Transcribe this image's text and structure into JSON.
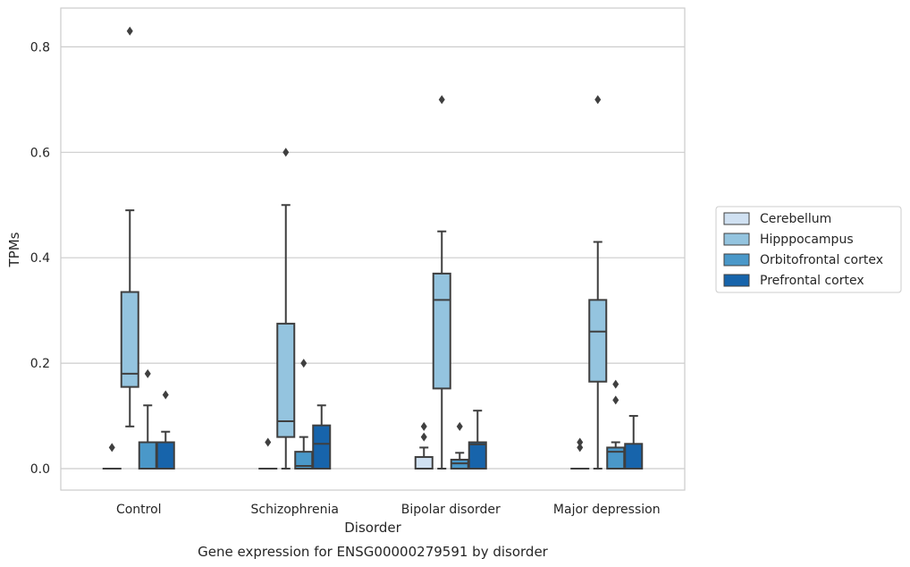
{
  "chart_data": {
    "type": "box",
    "caption": "Gene expression for ENSG00000279591 by disorder",
    "xlabel": "Disorder",
    "ylabel": "TPMs",
    "ylim": [
      -0.04,
      0.875
    ],
    "yticks": [
      "0.0",
      "0.2",
      "0.4",
      "0.6",
      "0.8"
    ],
    "ytick_values": [
      0.0,
      0.2,
      0.4,
      0.6,
      0.8
    ],
    "grid": true,
    "legend_position": "right",
    "categories": [
      "Control",
      "Schizophrenia",
      "Bipolar disorder",
      "Major depression"
    ],
    "series": [
      {
        "name": "Cerebellum",
        "color": "#d0e1f2",
        "boxes": [
          {
            "q1": 0.0,
            "median": 0.0,
            "q3": 0.0,
            "whisker_low": 0.0,
            "whisker_high": 0.0,
            "outliers": [
              0.04
            ]
          },
          {
            "q1": 0.0,
            "median": 0.0,
            "q3": 0.0,
            "whisker_low": 0.0,
            "whisker_high": 0.0,
            "outliers": [
              0.05
            ]
          },
          {
            "q1": 0.0,
            "median": 0.0,
            "q3": 0.022,
            "whisker_low": 0.0,
            "whisker_high": 0.04,
            "outliers": [
              0.06,
              0.08
            ]
          },
          {
            "q1": 0.0,
            "median": 0.0,
            "q3": 0.0,
            "whisker_low": 0.0,
            "whisker_high": 0.0,
            "outliers": [
              0.04,
              0.05
            ]
          }
        ]
      },
      {
        "name": "Hipppocampus",
        "color": "#94c4df",
        "boxes": [
          {
            "q1": 0.155,
            "median": 0.18,
            "q3": 0.335,
            "whisker_low": 0.08,
            "whisker_high": 0.49,
            "outliers": [
              0.83
            ]
          },
          {
            "q1": 0.06,
            "median": 0.09,
            "q3": 0.275,
            "whisker_low": 0.0,
            "whisker_high": 0.5,
            "outliers": [
              0.6
            ]
          },
          {
            "q1": 0.152,
            "median": 0.32,
            "q3": 0.37,
            "whisker_low": 0.0,
            "whisker_high": 0.45,
            "outliers": [
              0.7
            ]
          },
          {
            "q1": 0.165,
            "median": 0.26,
            "q3": 0.32,
            "whisker_low": 0.0,
            "whisker_high": 0.43,
            "outliers": [
              0.7
            ]
          }
        ]
      },
      {
        "name": "Orbitofrontal cortex",
        "color": "#4a98c9",
        "boxes": [
          {
            "q1": 0.0,
            "median": 0.0,
            "q3": 0.05,
            "whisker_low": 0.0,
            "whisker_high": 0.12,
            "outliers": [
              0.18
            ]
          },
          {
            "q1": 0.0,
            "median": 0.005,
            "q3": 0.032,
            "whisker_low": 0.0,
            "whisker_high": 0.06,
            "outliers": [
              0.2
            ]
          },
          {
            "q1": 0.0,
            "median": 0.01,
            "q3": 0.017,
            "whisker_low": 0.0,
            "whisker_high": 0.03,
            "outliers": [
              0.08
            ]
          },
          {
            "q1": 0.0,
            "median": 0.032,
            "q3": 0.04,
            "whisker_low": 0.0,
            "whisker_high": 0.05,
            "outliers": [
              0.13,
              0.16
            ]
          }
        ]
      },
      {
        "name": "Prefrontal cortex",
        "color": "#1764ab",
        "boxes": [
          {
            "q1": 0.0,
            "median": 0.0,
            "q3": 0.05,
            "whisker_low": 0.0,
            "whisker_high": 0.07,
            "outliers": [
              0.14
            ]
          },
          {
            "q1": 0.0,
            "median": 0.047,
            "q3": 0.082,
            "whisker_low": 0.0,
            "whisker_high": 0.12,
            "outliers": []
          },
          {
            "q1": 0.0,
            "median": 0.046,
            "q3": 0.05,
            "whisker_low": 0.0,
            "whisker_high": 0.11,
            "outliers": []
          },
          {
            "q1": 0.0,
            "median": 0.0,
            "q3": 0.047,
            "whisker_low": 0.0,
            "whisker_high": 0.1,
            "outliers": []
          }
        ]
      }
    ]
  }
}
